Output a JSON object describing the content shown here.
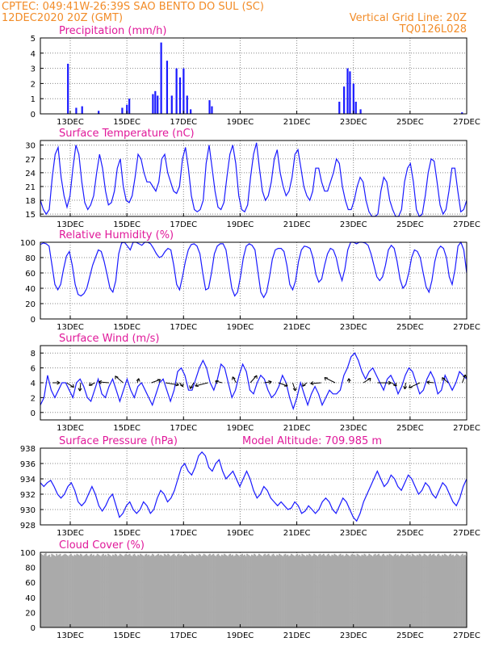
{
  "header": {
    "line1": "CPTEC:    049:41W-26:39S   SAO BENTO DO SUL (SC)",
    "line2_left": "12DEC2020 20Z (GMT)",
    "line2_right": "Vertical Grid Line: 20Z",
    "line3_right": "TQ0126L028"
  },
  "colors": {
    "header": "#f28c28",
    "panel_title": "#e0199a",
    "series": "#1a1aff",
    "cloud": "#aaaaaa"
  },
  "x_ticks": [
    "13DEC",
    "15DEC",
    "17DEC",
    "19DEC",
    "21DEC",
    "23DEC",
    "25DEC",
    "27DEC"
  ],
  "chart_data": [
    {
      "type": "bar",
      "title": "Precipitation (mm/h)",
      "ylim": [
        0,
        5
      ],
      "yticks": [
        "0",
        "1",
        "2",
        "3",
        "4",
        "5"
      ],
      "x_start": "12DEC2020 20Z",
      "x_end": "27DEC2020 00Z",
      "events": [
        {
          "x": "12DEC 22Z",
          "y": 3.3
        },
        {
          "x": "13DEC 05Z",
          "y": 0.4
        },
        {
          "x": "13DEC 10Z",
          "y": 0.5
        },
        {
          "x": "14DEC 00Z",
          "y": 0.2
        },
        {
          "x": "14DEC 20Z",
          "y": 0.4
        },
        {
          "x": "15DEC 00Z",
          "y": 0.6
        },
        {
          "x": "15DEC 02Z",
          "y": 1.0
        },
        {
          "x": "15DEC 22Z",
          "y": 1.3
        },
        {
          "x": "16DEC 00Z",
          "y": 1.5
        },
        {
          "x": "16DEC 02Z",
          "y": 1.2
        },
        {
          "x": "16DEC 05Z",
          "y": 4.7
        },
        {
          "x": "16DEC 10Z",
          "y": 3.5
        },
        {
          "x": "16DEC 14Z",
          "y": 1.2
        },
        {
          "x": "16DEC 18Z",
          "y": 3.0
        },
        {
          "x": "16DEC 21Z",
          "y": 2.4
        },
        {
          "x": "17DEC 00Z",
          "y": 3.0
        },
        {
          "x": "17DEC 03Z",
          "y": 1.2
        },
        {
          "x": "17DEC 06Z",
          "y": 0.3
        },
        {
          "x": "17DEC 22Z",
          "y": 0.9
        },
        {
          "x": "18DEC 00Z",
          "y": 0.5
        },
        {
          "x": "22DEC 12Z",
          "y": 0.8
        },
        {
          "x": "22DEC 16Z",
          "y": 1.8
        },
        {
          "x": "22DEC 19Z",
          "y": 3.0
        },
        {
          "x": "22DEC 21Z",
          "y": 2.8
        },
        {
          "x": "23DEC 00Z",
          "y": 2.0
        },
        {
          "x": "23DEC 02Z",
          "y": 0.8
        },
        {
          "x": "23DEC 06Z",
          "y": 0.3
        },
        {
          "x": "26DEC 20Z",
          "y": 0.1
        }
      ]
    },
    {
      "type": "line",
      "title": "Surface Temperature (nC)",
      "ylim": [
        14.5,
        31
      ],
      "yticks": [
        "15",
        "18",
        "21",
        "24",
        "27",
        "30"
      ],
      "x_start": "12DEC2020 20Z",
      "x_end": "27DEC2020 00Z",
      "values": [
        18,
        16,
        15,
        16,
        23,
        28,
        29.5,
        23,
        19,
        16.5,
        19,
        25,
        30,
        28,
        22,
        17.5,
        16,
        17,
        19,
        24,
        28,
        25,
        20,
        17,
        17.5,
        20,
        25,
        27,
        21,
        18,
        17.5,
        19,
        23,
        28,
        27,
        24,
        22,
        22,
        21,
        20,
        22,
        27,
        28,
        24,
        22,
        20,
        19.5,
        21,
        27,
        29.5,
        25,
        19,
        16,
        15.5,
        16,
        18,
        26,
        30,
        25,
        20,
        16.5,
        16,
        17.5,
        23,
        28,
        30,
        26,
        19,
        16,
        15.5,
        17,
        23,
        28,
        30.5,
        25,
        20,
        18,
        19,
        22,
        27,
        29,
        24,
        21,
        19,
        20,
        23,
        28,
        29,
        25,
        21,
        19,
        18,
        20,
        25,
        25,
        22,
        20,
        20,
        22,
        24,
        27,
        26,
        21,
        18,
        16,
        16,
        18,
        21,
        23,
        22,
        18,
        15.5,
        14.5,
        14,
        15,
        20,
        23,
        22,
        18,
        16,
        14.5,
        14,
        16,
        22,
        25,
        26,
        22,
        16,
        14.5,
        15,
        19,
        24,
        27,
        26.5,
        22,
        17,
        15,
        16,
        20,
        25,
        25,
        20,
        15.5,
        16,
        18
      ]
    },
    {
      "type": "line",
      "title": "Relative Humidity (%)",
      "ylim": [
        0,
        100
      ],
      "yticks": [
        "0",
        "20",
        "40",
        "60",
        "80",
        "100"
      ],
      "x_start": "12DEC2020 20Z",
      "x_end": "27DEC2020 00Z",
      "values": [
        97,
        99,
        98,
        95,
        70,
        45,
        38,
        45,
        65,
        82,
        88,
        70,
        45,
        32,
        30,
        33,
        40,
        55,
        70,
        80,
        90,
        88,
        75,
        58,
        40,
        35,
        50,
        85,
        99,
        100,
        95,
        90,
        100,
        100,
        98,
        96,
        100,
        100,
        98,
        92,
        85,
        80,
        82,
        88,
        92,
        90,
        70,
        45,
        38,
        55,
        75,
        90,
        97,
        98,
        95,
        85,
        60,
        38,
        40,
        60,
        85,
        95,
        98,
        98,
        90,
        65,
        40,
        30,
        35,
        55,
        80,
        95,
        98,
        96,
        90,
        62,
        35,
        28,
        35,
        55,
        78,
        90,
        92,
        92,
        88,
        70,
        45,
        38,
        50,
        75,
        90,
        95,
        94,
        92,
        80,
        58,
        48,
        52,
        70,
        85,
        92,
        90,
        80,
        62,
        50,
        65,
        90,
        100,
        100,
        98,
        100,
        100,
        99,
        96,
        85,
        70,
        55,
        50,
        55,
        70,
        90,
        96,
        92,
        75,
        52,
        40,
        45,
        60,
        80,
        90,
        88,
        80,
        60,
        42,
        35,
        50,
        75,
        90,
        95,
        92,
        80,
        55,
        45,
        65,
        95,
        100,
        90,
        60
      ]
    },
    {
      "type": "line",
      "title": "Surface Wind (m/s)",
      "ylim": [
        -1,
        9
      ],
      "yticks": [
        "0",
        "2",
        "4",
        "6",
        "8"
      ],
      "x_start": "12DEC2020 20Z",
      "x_end": "27DEC2020 00Z",
      "values": [
        1,
        2,
        5,
        3,
        2,
        3,
        4,
        4,
        3,
        2,
        4,
        4.5,
        3.5,
        2,
        1.5,
        3,
        4.5,
        2.5,
        2,
        3.5,
        4.5,
        3,
        1.5,
        3,
        4.5,
        3,
        2,
        3.5,
        4,
        3,
        2,
        1,
        2.5,
        4,
        4.5,
        3,
        1.5,
        3,
        5.5,
        6,
        5,
        3,
        3,
        4.5,
        6,
        7,
        6,
        4,
        3,
        4.5,
        6.5,
        6,
        4,
        2,
        3,
        5,
        6.5,
        5.5,
        3,
        2.5,
        4,
        5,
        4.5,
        3,
        2,
        2.5,
        3.5,
        5,
        4,
        2,
        0.5,
        2,
        4,
        2.5,
        1,
        2.5,
        3.5,
        2.5,
        1,
        2,
        3,
        2.5,
        2.5,
        3,
        5,
        6,
        7.5,
        8,
        7,
        5.5,
        4.5,
        5.5,
        6,
        5,
        4,
        3,
        4.5,
        5,
        4,
        2.5,
        3.5,
        5,
        6,
        5.5,
        4,
        2.5,
        3,
        4.5,
        5.5,
        4.5,
        2.5,
        3,
        5,
        4,
        3,
        4,
        5.5,
        5,
        4.5
      ]
    },
    {
      "type": "line",
      "title": "Surface Pressure (hPa)",
      "annotation": "Model Altitude: 709.985  m",
      "ylim": [
        928,
        938
      ],
      "yticks": [
        "928",
        "930",
        "932",
        "934",
        "936",
        "938"
      ],
      "x_start": "12DEC2020 20Z",
      "x_end": "27DEC2020 00Z",
      "values": [
        933.5,
        933,
        933.5,
        933.8,
        933,
        932,
        931.5,
        932,
        933,
        933.5,
        932.5,
        931,
        930.5,
        931,
        932,
        933,
        932,
        930.5,
        929.8,
        930.5,
        931.5,
        932,
        930.5,
        929,
        929.5,
        930.5,
        931,
        930,
        929.5,
        930,
        931,
        930.5,
        929.5,
        930,
        931.5,
        932.5,
        932,
        931,
        931.5,
        932.5,
        934,
        935.5,
        936,
        935,
        934.5,
        935.5,
        937,
        937.5,
        937,
        935.5,
        935,
        936,
        936.5,
        935,
        934,
        934.5,
        935,
        934,
        933,
        934,
        935,
        934,
        932.5,
        931.5,
        932,
        933,
        932.5,
        931.5,
        931,
        930.5,
        931,
        930.5,
        930,
        930.2,
        931,
        930.5,
        929.5,
        929.8,
        930.5,
        930,
        929.5,
        930,
        931,
        931.5,
        931,
        930,
        929.5,
        930.5,
        931.5,
        931,
        930,
        929,
        928.5,
        929.5,
        931,
        932,
        933,
        934,
        935,
        934,
        933,
        933.5,
        934.5,
        934,
        933,
        932.5,
        933.5,
        934.5,
        934,
        933,
        932,
        932.5,
        933.5,
        933,
        932,
        931.5,
        932.5,
        933.5,
        933,
        932,
        931,
        930.5,
        931.5,
        933,
        934
      ]
    },
    {
      "type": "bar",
      "title": "Cloud Cover (%)",
      "ylim": [
        0,
        100
      ],
      "yticks": [
        "0",
        "20",
        "40",
        "60",
        "80",
        "100"
      ],
      "x_start": "12DEC2020 20Z",
      "x_end": "27DEC2020 00Z",
      "values": [
        98,
        97,
        96,
        98,
        99,
        95,
        96,
        97,
        94,
        98,
        97,
        96,
        95,
        98,
        96,
        97,
        98,
        95,
        96,
        97,
        98,
        97,
        96,
        95,
        97,
        98,
        96,
        95,
        97,
        96,
        98,
        97,
        96,
        98,
        97,
        95,
        96,
        97,
        98,
        96,
        95,
        97,
        98,
        96,
        97,
        95,
        96,
        98,
        97,
        96,
        95,
        97,
        98,
        96,
        97,
        95,
        98,
        97,
        96,
        95,
        97,
        96,
        98,
        97,
        95,
        96,
        98,
        97,
        96,
        95,
        97,
        98,
        96,
        97,
        98,
        96,
        95,
        97,
        98,
        96,
        95,
        97,
        96,
        98,
        97,
        96,
        95,
        97,
        98,
        96,
        97,
        95,
        96,
        98,
        97,
        95,
        96,
        97,
        98,
        96,
        97,
        96,
        95,
        98,
        97,
        96,
        98,
        97,
        95,
        96,
        97,
        98,
        96,
        95,
        97,
        98,
        96,
        97,
        95,
        96,
        98,
        97,
        96,
        95,
        97,
        96,
        98,
        97,
        96,
        95,
        97,
        96,
        98,
        97,
        95,
        96,
        98,
        97,
        96,
        95,
        97,
        98,
        96,
        97,
        98,
        96,
        95,
        97,
        98,
        96,
        95,
        97,
        96,
        98,
        97,
        96,
        95,
        97,
        98,
        96,
        97,
        95,
        96,
        98,
        97,
        96,
        95,
        97,
        98,
        96,
        97,
        95,
        98,
        97,
        96,
        95,
        97,
        96,
        98,
        97,
        95,
        96,
        98,
        97,
        96,
        95,
        97,
        98,
        96,
        97,
        98,
        96,
        95,
        97,
        98,
        96,
        95,
        97,
        96,
        98,
        97,
        96,
        95,
        97,
        98,
        96,
        97,
        95,
        96,
        98,
        97,
        96,
        95,
        97,
        98,
        96,
        97,
        95,
        98,
        97,
        96,
        95,
        97,
        96,
        98,
        97,
        95,
        96,
        98,
        97,
        96,
        95,
        97,
        98,
        96,
        97,
        98,
        96,
        95,
        97,
        98,
        96,
        95,
        97,
        96,
        98,
        97,
        96,
        95,
        97,
        98,
        96,
        97,
        95,
        96,
        98,
        97,
        96,
        95,
        97,
        98,
        96,
        97,
        95,
        98,
        97,
        96,
        95,
        97,
        96,
        98,
        97,
        95,
        96,
        98,
        97,
        96,
        95,
        97,
        98,
        96,
        97,
        98,
        96,
        95,
        97,
        98,
        96,
        95,
        97,
        96,
        98,
        97,
        96,
        95,
        97,
        98,
        96,
        97,
        95,
        96,
        98,
        97,
        96,
        95,
        97,
        98,
        96,
        97,
        95,
        98,
        97,
        96,
        95,
        97,
        96,
        98,
        97,
        95,
        96,
        98,
        97,
        96,
        95,
        97,
        98,
        96,
        97,
        98,
        96,
        95,
        97,
        98,
        96,
        95,
        97,
        96,
        98,
        97,
        96,
        95,
        97,
        98,
        96,
        97,
        95,
        96,
        98,
        97,
        96,
        95,
        97,
        98,
        96,
        97,
        95
      ]
    }
  ]
}
